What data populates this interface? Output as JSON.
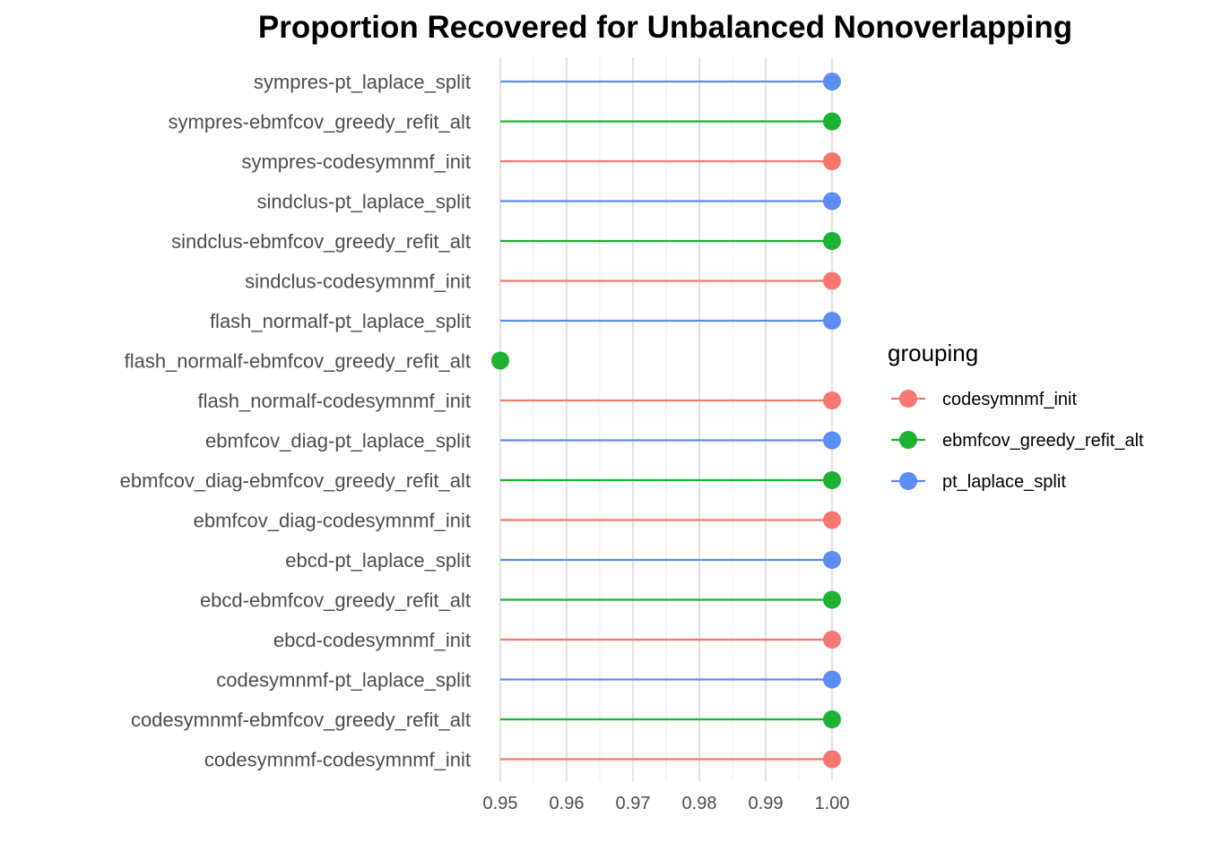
{
  "chart_data": {
    "type": "lollipop",
    "title": "Proportion Recovered for Unbalanced Nonoverlapping",
    "xlabel": "",
    "ylabel": "",
    "xlim": [
      0.95,
      1.0
    ],
    "x_ticks": [
      "0.95",
      "0.96",
      "0.97",
      "0.98",
      "0.99",
      "1.00"
    ],
    "x_tick_values": [
      0.95,
      0.96,
      0.97,
      0.98,
      0.99,
      1.0
    ],
    "grid": true,
    "legend": {
      "title": "grouping",
      "position": "right",
      "entries": [
        {
          "name": "codesymnmf_init",
          "color": "#F8766D"
        },
        {
          "name": "ebmfcov_greedy_refit_alt",
          "color": "#1DB232"
        },
        {
          "name": "pt_laplace_split",
          "color": "#5B8DF5"
        }
      ]
    },
    "categories": [
      "sympres-pt_laplace_split",
      "sympres-ebmfcov_greedy_refit_alt",
      "sympres-codesymnmf_init",
      "sindclus-pt_laplace_split",
      "sindclus-ebmfcov_greedy_refit_alt",
      "sindclus-codesymnmf_init",
      "flash_normalf-pt_laplace_split",
      "flash_normalf-ebmfcov_greedy_refit_alt",
      "flash_normalf-codesymnmf_init",
      "ebmfcov_diag-pt_laplace_split",
      "ebmfcov_diag-ebmfcov_greedy_refit_alt",
      "ebmfcov_diag-codesymnmf_init",
      "ebcd-pt_laplace_split",
      "ebcd-ebmfcov_greedy_refit_alt",
      "ebcd-codesymnmf_init",
      "codesymnmf-pt_laplace_split",
      "codesymnmf-ebmfcov_greedy_refit_alt",
      "codesymnmf-codesymnmf_init"
    ],
    "groups": [
      "pt_laplace_split",
      "ebmfcov_greedy_refit_alt",
      "codesymnmf_init",
      "pt_laplace_split",
      "ebmfcov_greedy_refit_alt",
      "codesymnmf_init",
      "pt_laplace_split",
      "ebmfcov_greedy_refit_alt",
      "codesymnmf_init",
      "pt_laplace_split",
      "ebmfcov_greedy_refit_alt",
      "codesymnmf_init",
      "pt_laplace_split",
      "ebmfcov_greedy_refit_alt",
      "codesymnmf_init",
      "pt_laplace_split",
      "ebmfcov_greedy_refit_alt",
      "codesymnmf_init"
    ],
    "values": [
      1.0,
      1.0,
      1.0,
      1.0,
      1.0,
      1.0,
      1.0,
      0.95,
      1.0,
      1.0,
      1.0,
      1.0,
      1.0,
      1.0,
      1.0,
      1.0,
      1.0,
      1.0
    ]
  }
}
